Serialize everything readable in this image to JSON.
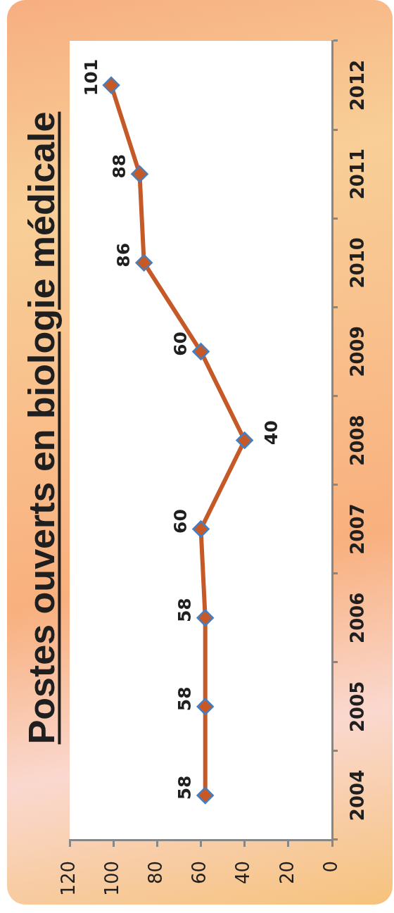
{
  "chart_data": {
    "type": "line",
    "title": "Postes ouverts en biologie médicale",
    "orientation": "horizontal",
    "categories": [
      "2012",
      "2011",
      "2010",
      "2009",
      "2008",
      "2007",
      "2006",
      "2005",
      "2004"
    ],
    "values": [
      101,
      88,
      86,
      60,
      40,
      60,
      58,
      58,
      58
    ],
    "color": "#c55a28",
    "xlim": [
      120,
      0
    ],
    "xticks": [
      0,
      20,
      40,
      60,
      80,
      100,
      120
    ],
    "marker": "diamond",
    "data_labels": true
  }
}
